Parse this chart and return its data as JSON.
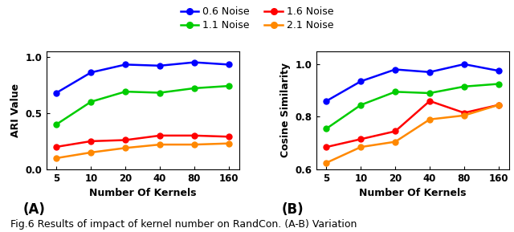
{
  "x": [
    5,
    10,
    20,
    40,
    80,
    160
  ],
  "x_positions": [
    0,
    1,
    2,
    3,
    4,
    5
  ],
  "x_labels": [
    "5",
    "10",
    "20",
    "40",
    "80",
    "160"
  ],
  "ari": {
    "0.6 Noise": [
      0.68,
      0.86,
      0.93,
      0.92,
      0.95,
      0.93
    ],
    "1.1 Noise": [
      0.4,
      0.6,
      0.69,
      0.68,
      0.72,
      0.74
    ],
    "1.6 Noise": [
      0.2,
      0.25,
      0.26,
      0.3,
      0.3,
      0.29
    ],
    "2.1 Noise": [
      0.1,
      0.15,
      0.19,
      0.22,
      0.22,
      0.23
    ]
  },
  "cosine": {
    "0.6 Noise": [
      0.86,
      0.935,
      0.98,
      0.97,
      1.0,
      0.975
    ],
    "1.1 Noise": [
      0.755,
      0.845,
      0.895,
      0.89,
      0.915,
      0.925
    ],
    "1.6 Noise": [
      0.685,
      0.715,
      0.745,
      0.86,
      0.815,
      0.845
    ],
    "2.1 Noise": [
      0.625,
      0.685,
      0.705,
      0.79,
      0.805,
      0.845
    ]
  },
  "colors": {
    "0.6 Noise": "#0000FF",
    "1.1 Noise": "#00CC00",
    "1.6 Noise": "#FF0000",
    "2.1 Noise": "#FF8800"
  },
  "ari_ylim": [
    0.0,
    1.05
  ],
  "cosine_ylim": [
    0.6,
    1.05
  ],
  "ari_yticks": [
    0.0,
    0.5,
    1.0
  ],
  "cosine_yticks": [
    0.6,
    0.8,
    1.0
  ],
  "xlabel": "Number Of Kernels",
  "ari_ylabel": "ARI Value",
  "cosine_ylabel": "Cosine Similarity",
  "label_A": "(A)",
  "label_B": "(B)",
  "caption": "Fig.6 Results of impact of kernel number on RandCon. (A-B) Variation",
  "legend_order": [
    "0.6 Noise",
    "1.1 Noise",
    "1.6 Noise",
    "2.1 Noise"
  ],
  "marker": "o",
  "markersize": 5,
  "linewidth": 1.8
}
